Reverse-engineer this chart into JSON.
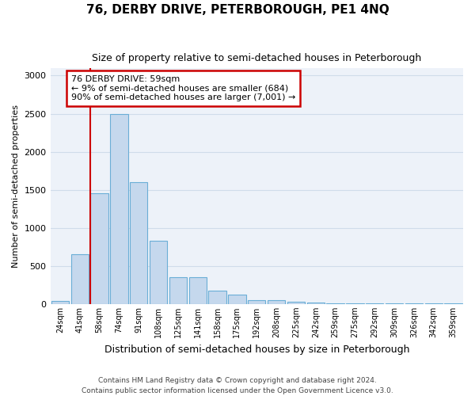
{
  "title": "76, DERBY DRIVE, PETERBOROUGH, PE1 4NQ",
  "subtitle": "Size of property relative to semi-detached houses in Peterborough",
  "xlabel": "Distribution of semi-detached houses by size in Peterborough",
  "ylabel": "Number of semi-detached properties",
  "footnote1": "Contains HM Land Registry data © Crown copyright and database right 2024.",
  "footnote2": "Contains public sector information licensed under the Open Government Licence v3.0.",
  "categories": [
    "24sqm",
    "41sqm",
    "58sqm",
    "74sqm",
    "91sqm",
    "108sqm",
    "125sqm",
    "141sqm",
    "158sqm",
    "175sqm",
    "192sqm",
    "208sqm",
    "225sqm",
    "242sqm",
    "259sqm",
    "275sqm",
    "292sqm",
    "309sqm",
    "326sqm",
    "342sqm",
    "359sqm"
  ],
  "values": [
    40,
    650,
    1450,
    2500,
    1600,
    830,
    350,
    350,
    175,
    125,
    50,
    50,
    30,
    15,
    12,
    10,
    8,
    8,
    5,
    5,
    5
  ],
  "bar_color": "#c5d8ed",
  "bar_edge_color": "#6aaed6",
  "grid_color": "#d0dcea",
  "background_color": "#edf2f9",
  "red_line_index": 2,
  "annotation_text": "76 DERBY DRIVE: 59sqm\n← 9% of semi-detached houses are smaller (684)\n90% of semi-detached houses are larger (7,001) →",
  "annotation_box_color": "#ffffff",
  "annotation_box_edge": "#cc0000",
  "red_line_color": "#cc0000",
  "ylim": [
    0,
    3100
  ],
  "yticks": [
    0,
    500,
    1000,
    1500,
    2000,
    2500,
    3000
  ]
}
